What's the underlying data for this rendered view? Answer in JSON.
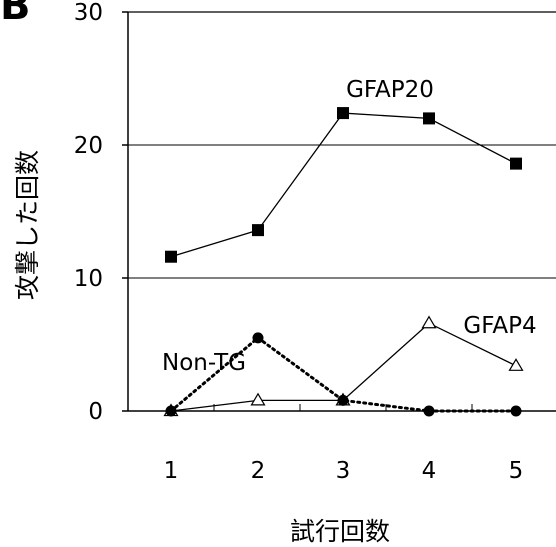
{
  "panel_letter": "B",
  "chart_data": {
    "type": "line",
    "title": "",
    "xlabel": "試行回数",
    "ylabel": "攻撃した回数",
    "categories": [
      "1",
      "2",
      "3",
      "4",
      "5"
    ],
    "ylim": [
      0,
      30
    ],
    "yticks": [
      0,
      10,
      20,
      30
    ],
    "grid": "horizontal at 10 and 20",
    "legend": "inline labels",
    "series": [
      {
        "name": "GFAP20",
        "values": [
          11.6,
          13.6,
          22.4,
          22.0,
          18.6
        ],
        "line_style": "solid",
        "marker": "filled-square",
        "color": "#000000"
      },
      {
        "name": "GFAP4",
        "values": [
          0.0,
          0.8,
          0.8,
          6.6,
          3.4
        ],
        "line_style": "solid",
        "marker": "open-triangle",
        "color": "#000000"
      },
      {
        "name": "Non-TG",
        "values": [
          0.0,
          5.5,
          0.8,
          0.0,
          0.0
        ],
        "line_style": "dotted",
        "marker": "filled-circle",
        "color": "#000000"
      }
    ]
  }
}
